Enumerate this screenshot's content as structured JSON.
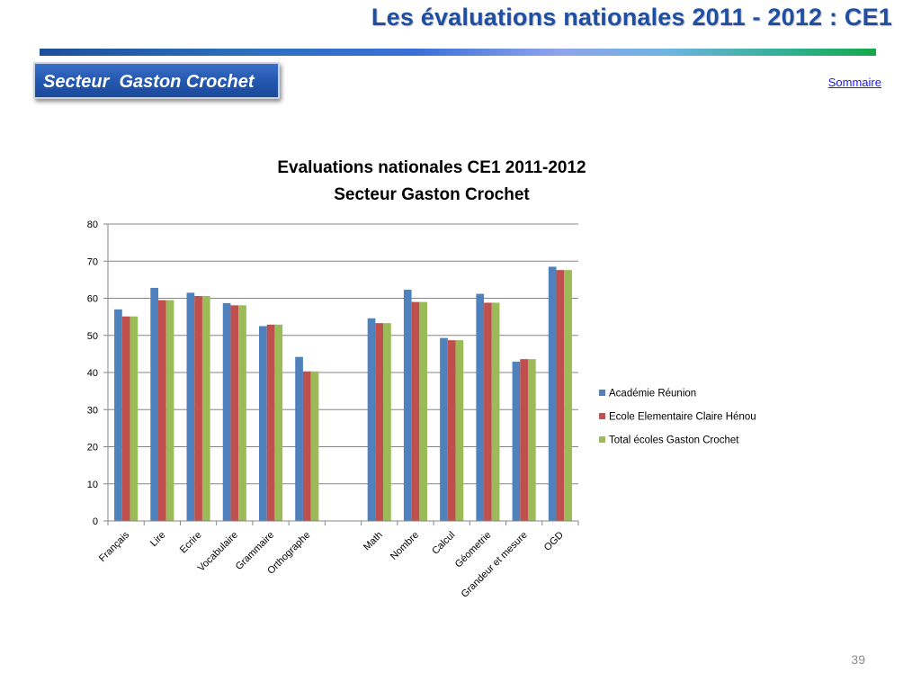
{
  "header": {
    "title": "Les évaluations nationales 2011 - 2012 : CE1",
    "sector_label": "Secteur  Gaston Crochet",
    "sommaire_link": "Sommaire"
  },
  "colors": {
    "title_blue": "#1f4fa3",
    "series_1": "#4f81bd",
    "series_2": "#c0504d",
    "series_3": "#9bbb59",
    "gridline": "#868686"
  },
  "chart_data": {
    "type": "bar",
    "title": "Evaluations nationales CE1 2011-2012",
    "subtitle": "Secteur Gaston Crochet",
    "categories": [
      "Français",
      "Lire",
      "Ecrire",
      "Vocabulaire",
      "Grammaire",
      "Orthographe",
      "",
      "Math",
      "Nombre",
      "Calcul",
      "Géometrie",
      "Grandeur et mesure",
      "OGD"
    ],
    "series": [
      {
        "name": "Académie Réunion",
        "color": "#4f81bd",
        "values": [
          57.0,
          62.8,
          61.5,
          58.7,
          52.5,
          44.2,
          null,
          54.6,
          62.3,
          49.3,
          61.2,
          42.9,
          68.5
        ]
      },
      {
        "name": "Ecole Elementaire Claire Hénou",
        "color": "#c0504d",
        "values": [
          55.1,
          59.5,
          60.6,
          58.1,
          52.9,
          40.3,
          null,
          53.3,
          59.0,
          48.7,
          58.8,
          43.6,
          67.6
        ]
      },
      {
        "name": "Total écoles Gaston Crochet",
        "color": "#9bbb59",
        "values": [
          55.1,
          59.5,
          60.6,
          58.1,
          52.9,
          40.3,
          null,
          53.3,
          59.0,
          48.7,
          58.8,
          43.6,
          67.6
        ]
      }
    ],
    "ylim": [
      0,
      80
    ],
    "yticks": [
      0,
      10,
      20,
      30,
      40,
      50,
      60,
      70,
      80
    ],
    "xlabel": "",
    "ylabel": "",
    "grid": true,
    "legend_position": "right"
  },
  "footer": {
    "page_number": "39"
  }
}
